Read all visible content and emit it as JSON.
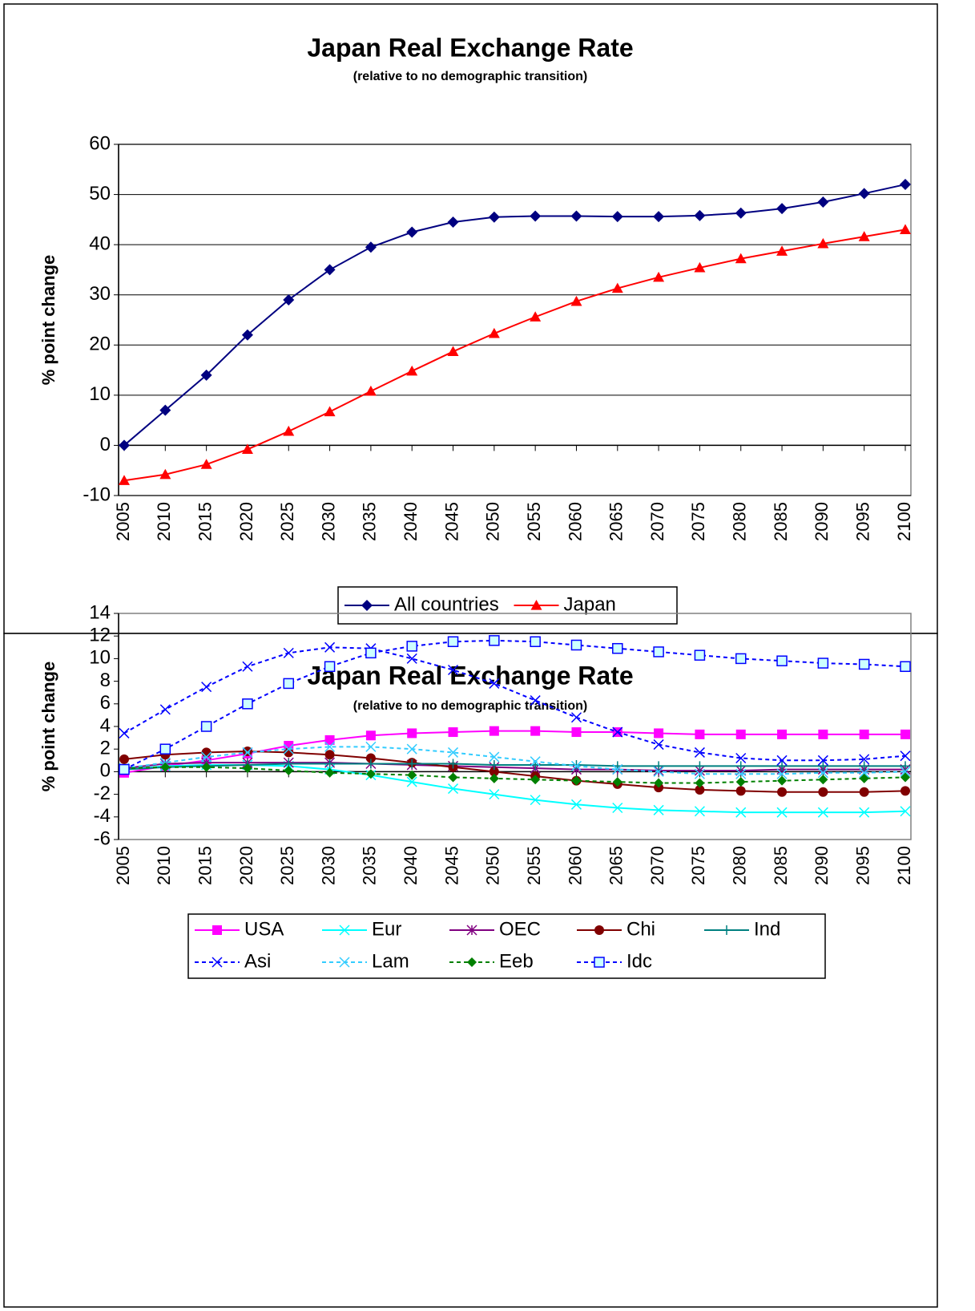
{
  "chart_data": [
    {
      "type": "line",
      "title": "Japan Real Exchange Rate",
      "subtitle": "(relative to no demographic transition)",
      "y_label": "% point change",
      "x": [
        2005,
        2010,
        2015,
        2020,
        2025,
        2030,
        2035,
        2040,
        2045,
        2050,
        2055,
        2060,
        2065,
        2070,
        2075,
        2080,
        2085,
        2090,
        2095,
        2100
      ],
      "xlim": [
        2005,
        2100
      ],
      "xticks": [
        2005,
        2010,
        2015,
        2020,
        2025,
        2030,
        2035,
        2040,
        2045,
        2050,
        2055,
        2060,
        2065,
        2070,
        2075,
        2080,
        2085,
        2090,
        2095,
        2100
      ],
      "ylim": [
        -10,
        60
      ],
      "yticks": [
        -10,
        0,
        10,
        20,
        30,
        40,
        50,
        60
      ],
      "grid": true,
      "legend": "bottom",
      "series": [
        {
          "name": "All countries",
          "color": "#000080",
          "marker": "diamond",
          "dash": false,
          "values": [
            0,
            7,
            14,
            22,
            29,
            35,
            39.5,
            42.5,
            44.5,
            45.5,
            45.7,
            45.7,
            45.6,
            45.6,
            45.8,
            46.3,
            47.2,
            48.5,
            50.2,
            52
          ]
        },
        {
          "name": "Japan",
          "color": "#ff0000",
          "marker": "triangle",
          "dash": false,
          "values": [
            -7,
            -5.8,
            -3.8,
            -0.8,
            2.8,
            6.7,
            10.8,
            14.8,
            18.7,
            22.3,
            25.6,
            28.7,
            31.3,
            33.5,
            35.4,
            37.2,
            38.7,
            40.2,
            41.6,
            43
          ]
        }
      ]
    },
    {
      "type": "line",
      "title": "Japan Real Exchange Rate",
      "subtitle": "(relative to no demographic transition)",
      "y_label": "% point change",
      "x": [
        2005,
        2010,
        2015,
        2020,
        2025,
        2030,
        2035,
        2040,
        2045,
        2050,
        2055,
        2060,
        2065,
        2070,
        2075,
        2080,
        2085,
        2090,
        2095,
        2100
      ],
      "xlim": [
        2005,
        2100
      ],
      "xticks": [
        2005,
        2010,
        2015,
        2020,
        2025,
        2030,
        2035,
        2040,
        2045,
        2050,
        2055,
        2060,
        2065,
        2070,
        2075,
        2080,
        2085,
        2090,
        2095,
        2100
      ],
      "ylim": [
        -6,
        14
      ],
      "yticks": [
        -6,
        -4,
        -2,
        0,
        2,
        4,
        6,
        8,
        10,
        12,
        14
      ],
      "grid": false,
      "legend": "bottom",
      "series": [
        {
          "name": "USA",
          "color": "#ff00ff",
          "marker": "square",
          "dash": false,
          "values": [
            -0.1,
            0.5,
            1.0,
            1.6,
            2.3,
            2.8,
            3.2,
            3.4,
            3.5,
            3.6,
            3.6,
            3.5,
            3.5,
            3.4,
            3.3,
            3.3,
            3.3,
            3.3,
            3.3,
            3.3
          ]
        },
        {
          "name": "Eur",
          "color": "#00ffff",
          "marker": "x",
          "dash": false,
          "values": [
            0.2,
            0.5,
            0.6,
            0.6,
            0.5,
            0.2,
            -0.3,
            -0.9,
            -1.5,
            -2.0,
            -2.5,
            -2.9,
            -3.2,
            -3.4,
            -3.5,
            -3.6,
            -3.6,
            -3.6,
            -3.6,
            -3.5
          ]
        },
        {
          "name": "OEC",
          "color": "#800080",
          "marker": "star",
          "dash": false,
          "values": [
            0.3,
            0.7,
            0.8,
            0.8,
            0.8,
            0.8,
            0.7,
            0.6,
            0.5,
            0.4,
            0.3,
            0.2,
            0.2,
            0.1,
            0.1,
            0.1,
            0.2,
            0.2,
            0.2,
            0.2
          ]
        },
        {
          "name": "Chi",
          "color": "#800000",
          "marker": "circle",
          "dash": false,
          "values": [
            1.1,
            1.5,
            1.7,
            1.8,
            1.7,
            1.5,
            1.2,
            0.8,
            0.4,
            0.0,
            -0.4,
            -0.8,
            -1.1,
            -1.4,
            -1.6,
            -1.7,
            -1.8,
            -1.8,
            -1.8,
            -1.7
          ]
        },
        {
          "name": "Ind",
          "color": "#008080",
          "marker": "plus",
          "dash": false,
          "values": [
            0.2,
            0.4,
            0.5,
            0.6,
            0.7,
            0.7,
            0.7,
            0.7,
            0.7,
            0.6,
            0.6,
            0.6,
            0.5,
            0.5,
            0.5,
            0.5,
            0.5,
            0.5,
            0.5,
            0.5
          ]
        },
        {
          "name": "Asi",
          "color": "#0000ff",
          "marker": "x",
          "dash": true,
          "values": [
            3.4,
            5.5,
            7.5,
            9.3,
            10.5,
            11.0,
            10.9,
            10.0,
            9.0,
            7.8,
            6.3,
            4.8,
            3.5,
            2.4,
            1.7,
            1.2,
            1.0,
            1.0,
            1.1,
            1.4
          ]
        },
        {
          "name": "Lam",
          "color": "#33ccff",
          "marker": "x",
          "dash": true,
          "values": [
            0.3,
            0.8,
            1.3,
            1.7,
            2.0,
            2.2,
            2.2,
            2.0,
            1.7,
            1.3,
            0.9,
            0.5,
            0.2,
            0.0,
            -0.2,
            -0.2,
            -0.2,
            -0.1,
            -0.1,
            0.0
          ]
        },
        {
          "name": "Eeb",
          "color": "#008000",
          "marker": "diamond",
          "dash": true,
          "values": [
            0.3,
            0.4,
            0.4,
            0.3,
            0.1,
            -0.1,
            -0.2,
            -0.3,
            -0.5,
            -0.6,
            -0.7,
            -0.8,
            -0.9,
            -1.0,
            -1.0,
            -0.9,
            -0.8,
            -0.7,
            -0.6,
            -0.5
          ]
        },
        {
          "name": "Idc",
          "color": "#0000ff",
          "marker": "square-open",
          "dash": true,
          "values": [
            0.2,
            2.0,
            4.0,
            6.0,
            7.8,
            9.3,
            10.5,
            11.1,
            11.5,
            11.6,
            11.5,
            11.2,
            10.9,
            10.6,
            10.3,
            10.0,
            9.8,
            9.6,
            9.5,
            9.3
          ]
        }
      ]
    }
  ]
}
